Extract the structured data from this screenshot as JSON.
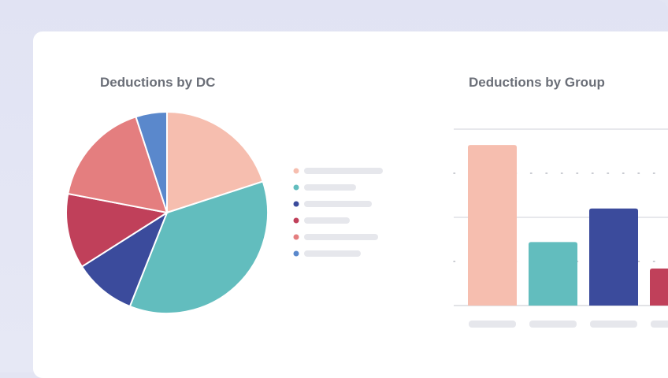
{
  "colors": {
    "background": "#e3e5f3",
    "card": "#ffffff",
    "title": "#6b6f78",
    "placeholder": "#e6e7ec",
    "grid": "#cfd2d8"
  },
  "chart_data": [
    {
      "type": "pie",
      "title": "Deductions by DC",
      "slices": [
        {
          "value": 20,
          "color": "#f6beaf"
        },
        {
          "value": 36,
          "color": "#62bdbe"
        },
        {
          "value": 10,
          "color": "#3b4b9c"
        },
        {
          "value": 12,
          "color": "#c0405a"
        },
        {
          "value": 17,
          "color": "#e47e7f"
        },
        {
          "value": 5,
          "color": "#5a88cc"
        }
      ],
      "legend": {
        "position": "right",
        "entries": [
          {
            "color": "#f6beaf",
            "label_placeholder_size": 100
          },
          {
            "color": "#62bdbe",
            "label_placeholder_size": 66
          },
          {
            "color": "#3b4b9c",
            "label_placeholder_size": 86
          },
          {
            "color": "#c0405a",
            "label_placeholder_size": 58
          },
          {
            "color": "#e47e7f",
            "label_placeholder_size": 94
          },
          {
            "color": "#5a88cc",
            "label_placeholder_size": 72
          }
        ]
      }
    },
    {
      "type": "bar",
      "title": "Deductions by Group",
      "ylim": [
        0,
        100
      ],
      "gridlines": [
        50,
        100
      ],
      "dotted_gridlines": [
        25,
        75
      ],
      "bars": [
        {
          "value": 91,
          "color": "#f6beaf"
        },
        {
          "value": 36,
          "color": "#62bdbe"
        },
        {
          "value": 55,
          "color": "#3b4b9c"
        },
        {
          "value": 21,
          "color": "#c0405a"
        }
      ]
    }
  ]
}
